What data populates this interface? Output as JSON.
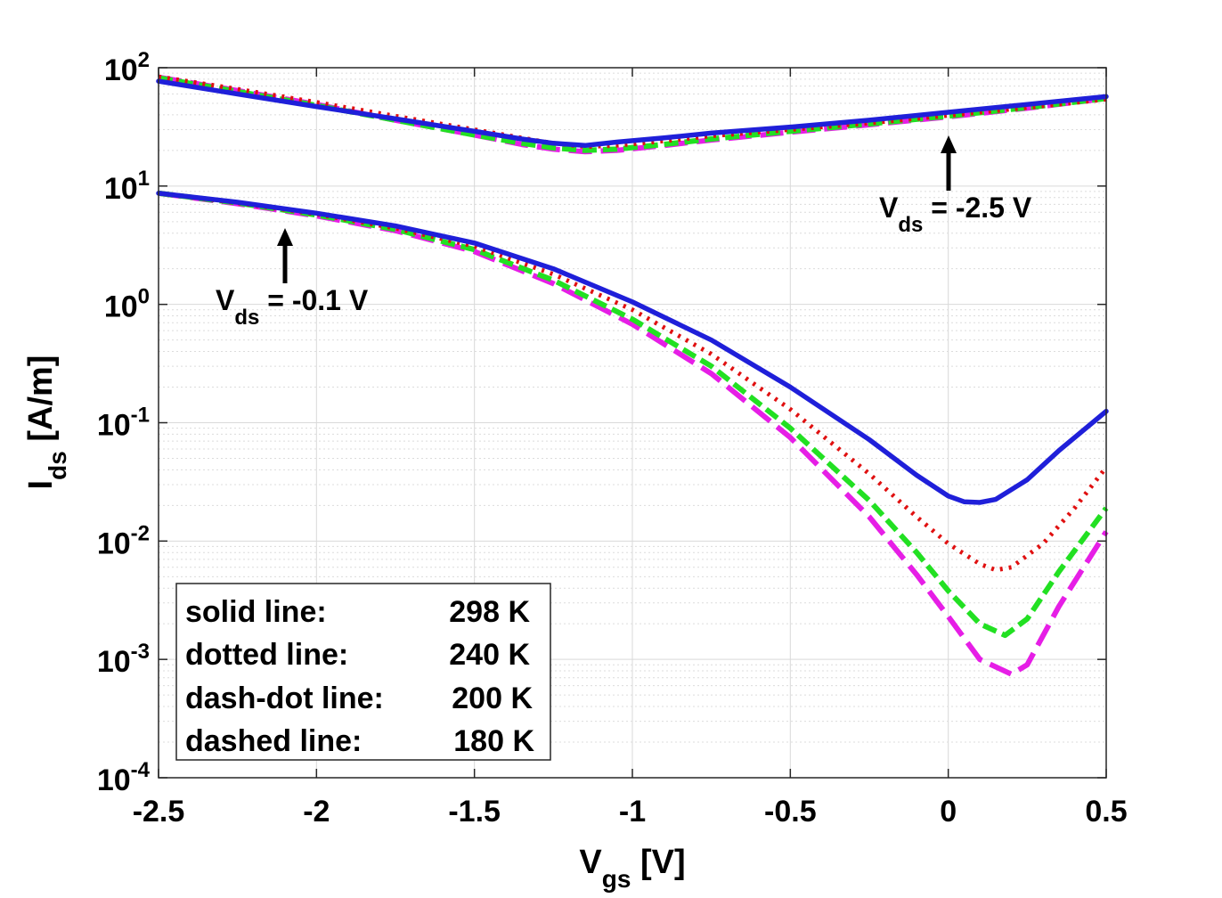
{
  "chart_data": {
    "type": "line",
    "title": "",
    "xlabel": {
      "main": "V",
      "sub": "gs",
      "unit": " [V]"
    },
    "ylabel": {
      "main": "I",
      "sub": "ds",
      "unit": " [A/m]"
    },
    "xlim": [
      -2.5,
      0.5
    ],
    "ylim": [
      0.0001,
      100
    ],
    "yscale": "log",
    "grid": true,
    "x_ticks": [
      {
        "value": -2.5,
        "label": "-2.5"
      },
      {
        "value": -2,
        "label": "-2"
      },
      {
        "value": -1.5,
        "label": "-1.5"
      },
      {
        "value": -1,
        "label": "-1"
      },
      {
        "value": -0.5,
        "label": "-0.5"
      },
      {
        "value": 0,
        "label": "0"
      },
      {
        "value": 0.5,
        "label": "0.5"
      }
    ],
    "y_ticks": [
      {
        "value": 100,
        "base": "10",
        "exp": "2"
      },
      {
        "value": 10,
        "base": "10",
        "exp": "1"
      },
      {
        "value": 1,
        "base": "10",
        "exp": "0"
      },
      {
        "value": 0.1,
        "base": "10",
        "exp": "-1"
      },
      {
        "value": 0.01,
        "base": "10",
        "exp": "-2"
      },
      {
        "value": 0.001,
        "base": "10",
        "exp": "-3"
      },
      {
        "value": 0.0001,
        "base": "10",
        "exp": "-4"
      }
    ],
    "series": [
      {
        "name": "298 K high Vds",
        "temperature": "298 K",
        "vds": "-2.5 V",
        "style": "solid",
        "color": "#1f1fd9",
        "x": [
          -2.5,
          -2.25,
          -2.0,
          -1.75,
          -1.5,
          -1.35,
          -1.25,
          -1.15,
          -1.05,
          -0.9,
          -0.75,
          -0.5,
          -0.25,
          0.0,
          0.25,
          0.5
        ],
        "y": [
          77,
          60,
          47,
          37,
          29,
          25,
          23,
          22,
          23.5,
          25.5,
          28,
          31.5,
          36,
          42,
          49,
          57
        ]
      },
      {
        "name": "240 K high Vds",
        "temperature": "240 K",
        "vds": "-2.5 V",
        "style": "dotted",
        "color": "#e01010",
        "x": [
          -2.5,
          -2.25,
          -2.0,
          -1.75,
          -1.5,
          -1.35,
          -1.25,
          -1.15,
          -1.05,
          -0.9,
          -0.75,
          -0.5,
          -0.25,
          0.0,
          0.25,
          0.5
        ],
        "y": [
          84,
          66,
          51,
          39,
          30,
          25.5,
          23,
          21.5,
          22,
          24,
          26.5,
          30,
          34,
          39.5,
          46,
          54
        ]
      },
      {
        "name": "200 K high Vds",
        "temperature": "200 K",
        "vds": "-2.5 V",
        "style": "dash-dot",
        "color": "#22e022",
        "x": [
          -2.5,
          -2.25,
          -2.0,
          -1.75,
          -1.5,
          -1.35,
          -1.25,
          -1.15,
          -1.05,
          -0.9,
          -0.75,
          -0.5,
          -0.25,
          0.0,
          0.25,
          0.5
        ],
        "y": [
          82,
          63,
          48,
          36,
          27,
          23,
          21,
          20,
          20.5,
          22.5,
          25,
          29,
          33.5,
          39,
          46,
          55
        ]
      },
      {
        "name": "180 K high Vds",
        "temperature": "180 K",
        "vds": "-2.5 V",
        "style": "dashed",
        "color": "#e61ee6",
        "x": [
          -2.5,
          -2.25,
          -2.0,
          -1.75,
          -1.5,
          -1.35,
          -1.25,
          -1.15,
          -1.05,
          -0.9,
          -0.75,
          -0.5,
          -0.25,
          0.0,
          0.25,
          0.5
        ],
        "y": [
          83,
          64,
          49,
          36,
          27,
          22.5,
          20.5,
          19.5,
          20,
          22,
          24.5,
          28.5,
          33,
          38.5,
          45.5,
          55
        ]
      },
      {
        "name": "298 K low Vds",
        "temperature": "298 K",
        "vds": "-0.1 V",
        "style": "solid",
        "color": "#1f1fd9",
        "x": [
          -2.5,
          -2.25,
          -2.0,
          -1.75,
          -1.5,
          -1.25,
          -1.0,
          -0.75,
          -0.5,
          -0.25,
          -0.1,
          0.0,
          0.05,
          0.1,
          0.15,
          0.25,
          0.35,
          0.5
        ],
        "y": [
          8.7,
          7.3,
          5.9,
          4.6,
          3.3,
          2.0,
          1.05,
          0.5,
          0.2,
          0.072,
          0.036,
          0.024,
          0.0215,
          0.0212,
          0.0225,
          0.033,
          0.058,
          0.125
        ]
      },
      {
        "name": "240 K low Vds",
        "temperature": "240 K",
        "vds": "-0.1 V",
        "style": "dotted",
        "color": "#e01010",
        "x": [
          -2.5,
          -2.25,
          -2.0,
          -1.75,
          -1.5,
          -1.25,
          -1.0,
          -0.75,
          -0.5,
          -0.25,
          -0.1,
          0.0,
          0.1,
          0.15,
          0.2,
          0.3,
          0.4,
          0.5
        ],
        "y": [
          8.7,
          7.2,
          5.8,
          4.4,
          3.1,
          1.8,
          0.9,
          0.38,
          0.13,
          0.037,
          0.016,
          0.0095,
          0.0064,
          0.0057,
          0.006,
          0.0095,
          0.019,
          0.042
        ]
      },
      {
        "name": "200 K low Vds",
        "temperature": "200 K",
        "vds": "-0.1 V",
        "style": "dash-dot",
        "color": "#22e022",
        "x": [
          -2.5,
          -2.25,
          -2.0,
          -1.75,
          -1.5,
          -1.25,
          -1.0,
          -0.75,
          -0.5,
          -0.25,
          -0.1,
          0.0,
          0.1,
          0.18,
          0.25,
          0.35,
          0.5
        ],
        "y": [
          8.7,
          7.2,
          5.7,
          4.3,
          2.9,
          1.6,
          0.75,
          0.3,
          0.09,
          0.022,
          0.008,
          0.0038,
          0.002,
          0.0016,
          0.0022,
          0.0055,
          0.019
        ]
      },
      {
        "name": "180 K low Vds",
        "temperature": "180 K",
        "vds": "-0.1 V",
        "style": "dashed",
        "color": "#e61ee6",
        "x": [
          -2.5,
          -2.25,
          -2.0,
          -1.75,
          -1.5,
          -1.25,
          -1.0,
          -0.75,
          -0.5,
          -0.25,
          -0.1,
          0.0,
          0.1,
          0.2,
          0.25,
          0.35,
          0.5
        ],
        "y": [
          8.7,
          7.1,
          5.6,
          4.2,
          2.8,
          1.5,
          0.68,
          0.26,
          0.075,
          0.016,
          0.0052,
          0.0023,
          0.001,
          0.00075,
          0.0009,
          0.0028,
          0.012
        ]
      }
    ],
    "annotations": [
      {
        "id": "vds-low",
        "main": "V",
        "sub": "ds",
        "text": " = -0.1 V",
        "x": -2.1,
        "y": 0.5
      },
      {
        "id": "vds-high",
        "main": "V",
        "sub": "ds",
        "text": " = -2.5 V",
        "x": 0.0,
        "y": 20
      }
    ],
    "legend": {
      "position": "bottom-left",
      "entries": [
        {
          "label": "solid line:",
          "value": "298 K"
        },
        {
          "label": "dotted line:",
          "value": "240 K"
        },
        {
          "label": "dash-dot line:",
          "value": "200 K"
        },
        {
          "label": "dashed line:",
          "value": "180 K"
        }
      ]
    }
  }
}
